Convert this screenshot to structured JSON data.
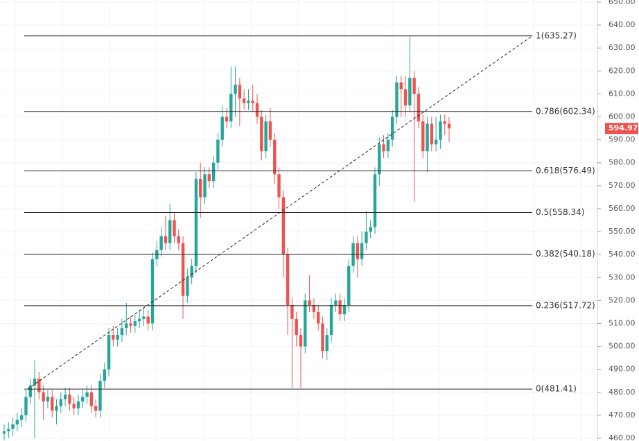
{
  "chart_data": {
    "type": "candlestick",
    "up_color": "#26a69a",
    "down_color": "#ef5350",
    "grid": true,
    "ylim": [
      460,
      650
    ],
    "yticks": [
      {
        "value": 460,
        "label": "460.00"
      },
      {
        "value": 470,
        "label": "470.00"
      },
      {
        "value": 480,
        "label": "480.00"
      },
      {
        "value": 490,
        "label": "490.00"
      },
      {
        "value": 500,
        "label": "500.00"
      },
      {
        "value": 510,
        "label": "510.00"
      },
      {
        "value": 520,
        "label": "520.00"
      },
      {
        "value": 530,
        "label": "530.00"
      },
      {
        "value": 540,
        "label": "540.00"
      },
      {
        "value": 550,
        "label": "550.00"
      },
      {
        "value": 560,
        "label": "560.00"
      },
      {
        "value": 570,
        "label": "570.00"
      },
      {
        "value": 580,
        "label": "580.00"
      },
      {
        "value": 590,
        "label": "590.00"
      },
      {
        "value": 600,
        "label": "600.00"
      },
      {
        "value": 610,
        "label": "610.00"
      },
      {
        "value": 620,
        "label": "620.00"
      },
      {
        "value": 630,
        "label": "630.00"
      },
      {
        "value": 640,
        "label": "640.00"
      },
      {
        "value": 650,
        "label": "650.00"
      }
    ],
    "open": [
      462,
      463,
      464,
      466,
      468,
      470,
      478,
      483,
      486,
      480,
      476,
      478,
      472,
      474,
      477,
      479,
      475,
      473,
      476,
      478,
      480,
      474,
      472,
      485,
      490,
      505,
      503,
      505,
      508,
      510,
      509,
      511,
      512,
      513,
      510,
      538,
      542,
      548,
      545,
      555,
      548,
      545,
      522,
      530,
      535,
      573,
      565,
      575,
      572,
      580,
      590,
      600,
      598,
      610,
      614,
      608,
      606,
      607,
      606,
      600,
      585,
      598,
      590,
      575,
      565,
      540,
      518,
      512,
      505,
      500,
      520,
      518,
      515,
      510,
      498,
      505,
      518,
      520,
      514,
      518,
      535,
      545,
      538,
      545,
      550,
      552,
      575,
      588,
      585,
      590,
      600,
      615,
      612,
      605,
      617,
      610,
      598,
      585,
      597,
      588,
      590,
      598,
      597
    ],
    "high": [
      466,
      467,
      469,
      471,
      473,
      481,
      486,
      494,
      489,
      483,
      481,
      481,
      477,
      480,
      482,
      482,
      478,
      479,
      481,
      483,
      483,
      477,
      488,
      493,
      508,
      509,
      508,
      512,
      519,
      513,
      514,
      516,
      517,
      516,
      541,
      546,
      552,
      557,
      562,
      558,
      551,
      548,
      534,
      538,
      576,
      580,
      578,
      578,
      583,
      593,
      605,
      604,
      622,
      622,
      617,
      612,
      612,
      614,
      610,
      603,
      601,
      604,
      593,
      578,
      568,
      543,
      521,
      515,
      508,
      523,
      531,
      521,
      518,
      513,
      508,
      521,
      523,
      523,
      521,
      538,
      548,
      548,
      550,
      559,
      555,
      578,
      591,
      592,
      593,
      603,
      618,
      618,
      618,
      635,
      620,
      613,
      601,
      600,
      600,
      600,
      601,
      601,
      600
    ],
    "low": [
      459,
      460,
      461,
      463,
      465,
      467,
      475,
      460,
      477,
      468,
      473,
      469,
      466,
      471,
      474,
      472,
      470,
      470,
      473,
      475,
      471,
      469,
      469,
      482,
      487,
      500,
      500,
      502,
      505,
      506,
      506,
      508,
      509,
      507,
      507,
      535,
      539,
      542,
      542,
      545,
      542,
      512,
      519,
      527,
      532,
      556,
      562,
      569,
      569,
      577,
      587,
      595,
      595,
      600,
      596,
      603,
      603,
      602,
      597,
      581,
      582,
      587,
      571,
      560,
      530,
      505,
      482,
      500,
      482,
      497,
      515,
      512,
      507,
      495,
      494,
      502,
      515,
      511,
      511,
      515,
      532,
      530,
      535,
      542,
      547,
      549,
      570,
      582,
      582,
      587,
      597,
      600,
      600,
      602,
      563,
      595,
      582,
      576,
      585,
      585,
      586,
      592,
      589
    ],
    "close": [
      463,
      464,
      466,
      468,
      470,
      478,
      483,
      486,
      480,
      476,
      478,
      472,
      474,
      477,
      479,
      475,
      473,
      476,
      478,
      480,
      474,
      472,
      485,
      490,
      505,
      503,
      505,
      508,
      510,
      509,
      511,
      512,
      513,
      510,
      538,
      542,
      548,
      545,
      555,
      548,
      545,
      522,
      530,
      535,
      573,
      565,
      575,
      572,
      580,
      590,
      600,
      598,
      610,
      614,
      608,
      606,
      607,
      606,
      600,
      585,
      598,
      590,
      575,
      565,
      540,
      518,
      512,
      505,
      500,
      520,
      518,
      515,
      510,
      498,
      505,
      518,
      520,
      514,
      518,
      535,
      545,
      538,
      545,
      550,
      552,
      575,
      588,
      585,
      590,
      600,
      615,
      612,
      605,
      617,
      610,
      598,
      585,
      597,
      588,
      590,
      598,
      597,
      594.97
    ],
    "fib_levels": [
      {
        "value": 635.27,
        "label": "1(635.27)"
      },
      {
        "value": 602.34,
        "label": "0.786(602.34)"
      },
      {
        "value": 576.49,
        "label": "0.618(576.49)"
      },
      {
        "value": 558.34,
        "label": "0.5(558.34)"
      },
      {
        "value": 540.18,
        "label": "0.382(540.18)"
      },
      {
        "value": 517.72,
        "label": "0.236(517.72)"
      },
      {
        "value": 481.41,
        "label": "0(481.41)"
      }
    ],
    "last_price": 594.97
  }
}
